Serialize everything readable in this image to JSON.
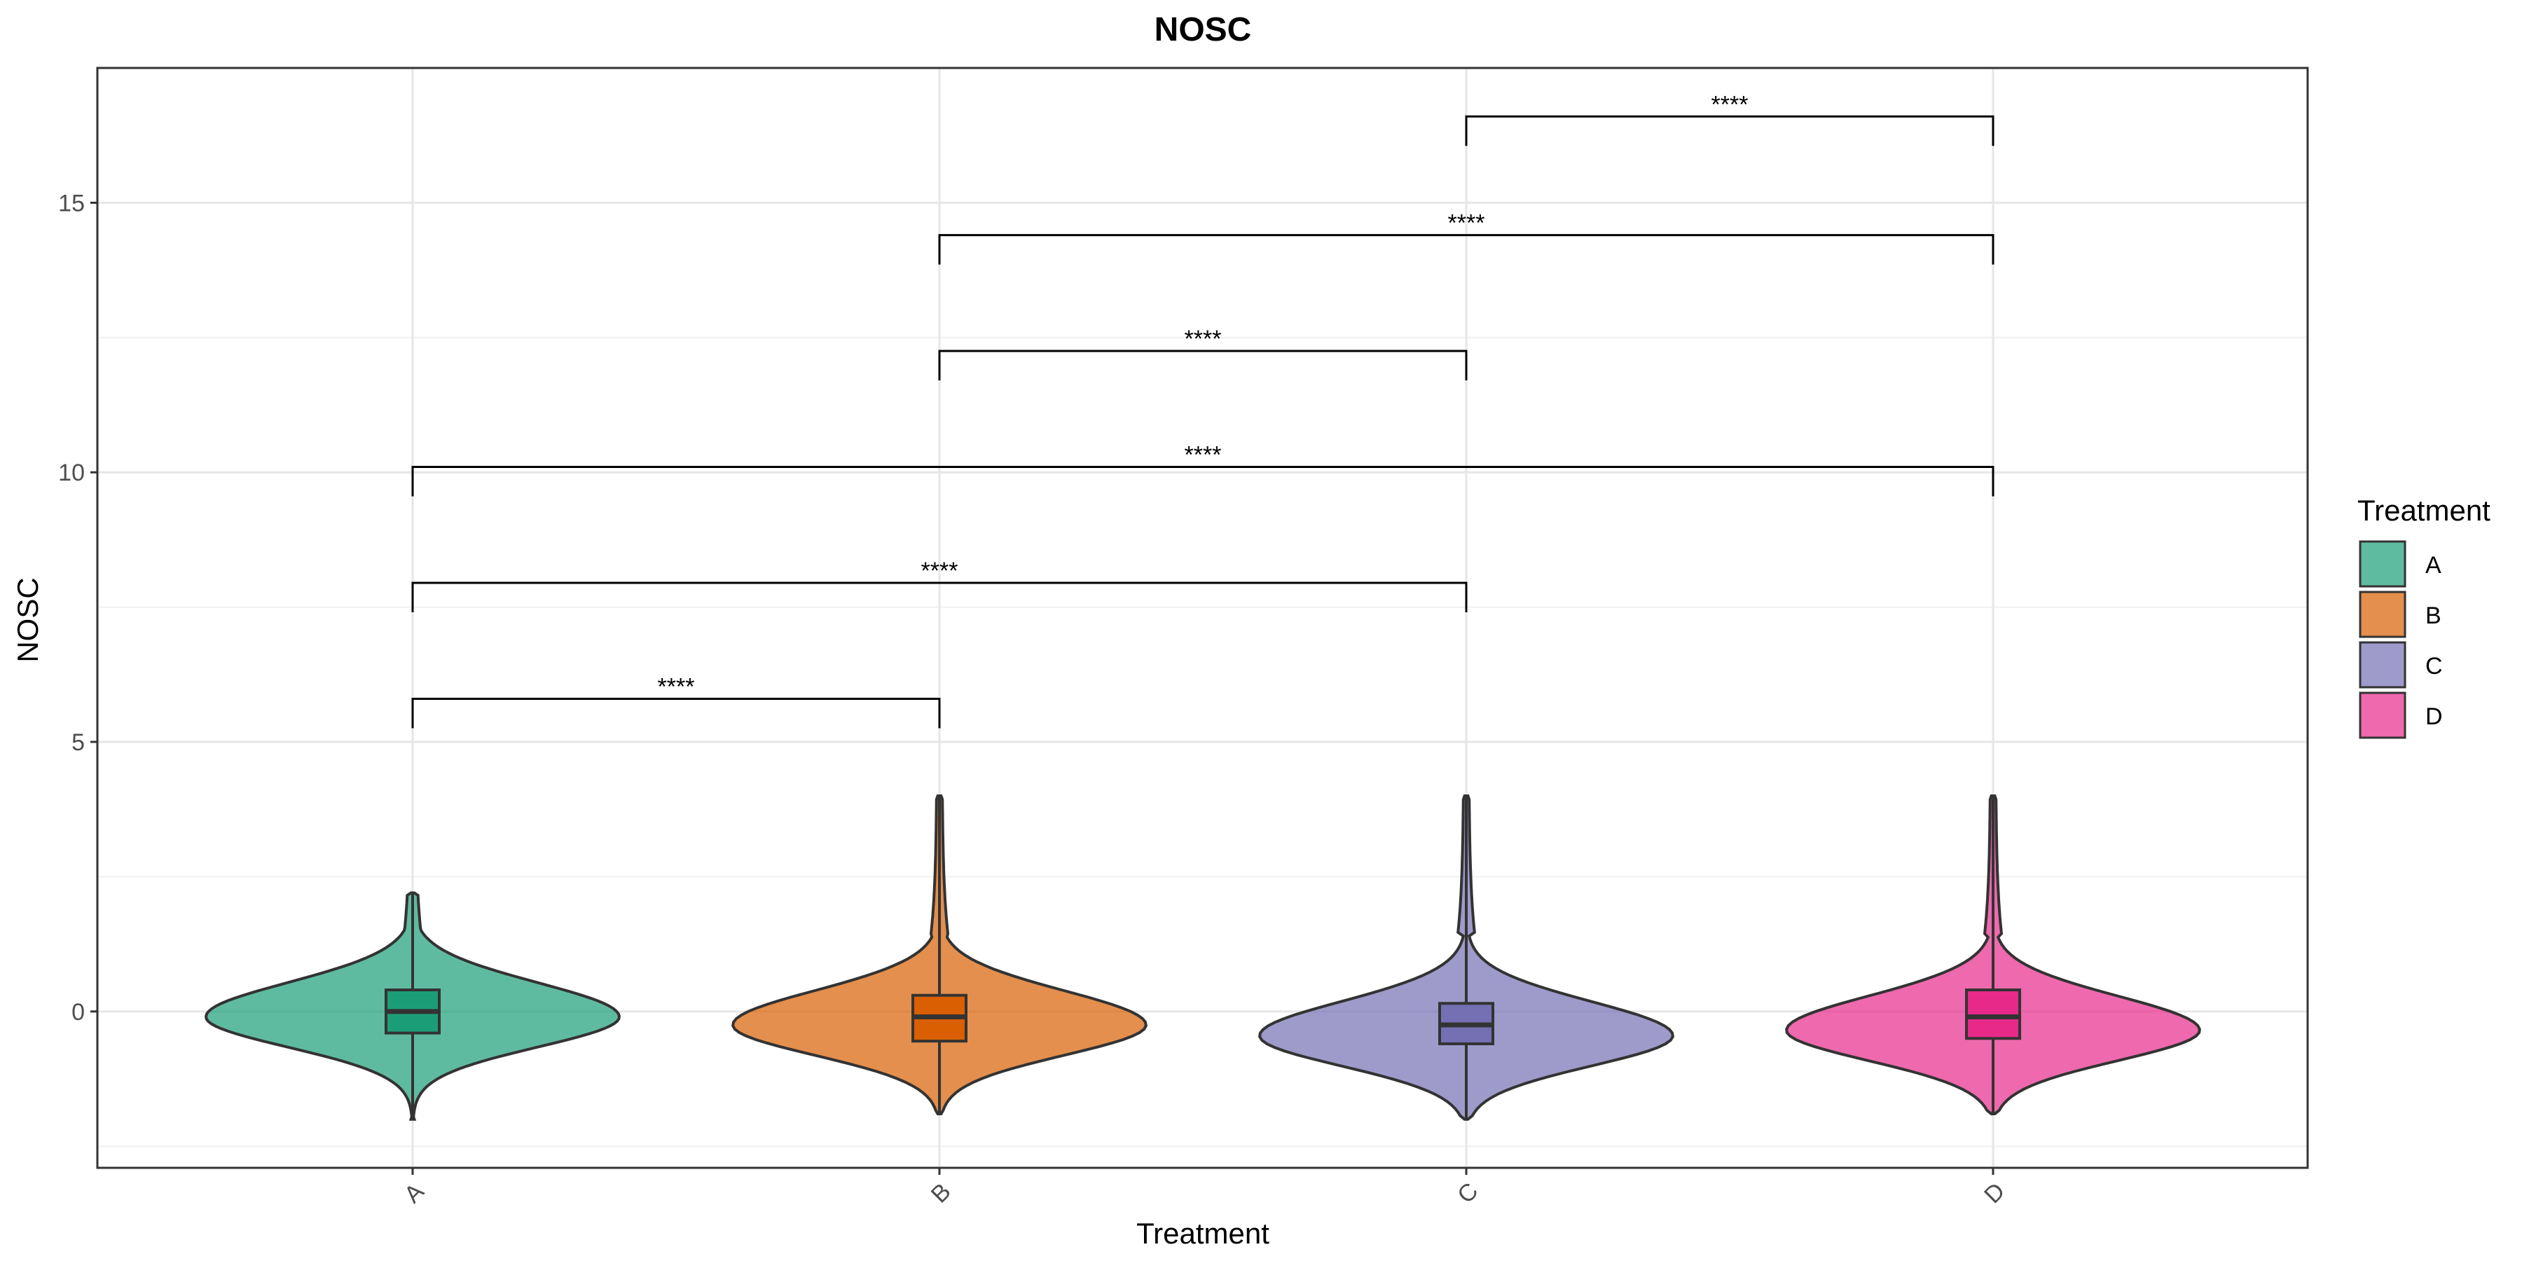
{
  "chart_data": {
    "type": "violin",
    "title": "NOSC",
    "xlabel": "Treatment",
    "ylabel": "NOSC",
    "ylim": [
      -2.9,
      17.5
    ],
    "yticks": [
      0,
      5,
      10,
      15
    ],
    "grid": true,
    "legend": {
      "title": "Treatment",
      "position": "right"
    },
    "categories": [
      "A",
      "B",
      "C",
      "D"
    ],
    "series": [
      {
        "name": "A",
        "color": "#1B9E77",
        "min": -2.0,
        "q1": -0.4,
        "median": 0.0,
        "q3": 0.4,
        "max": 2.2,
        "violin_max": 2.2,
        "violin_min": -2.0
      },
      {
        "name": "B",
        "color": "#D95F02",
        "min": -1.9,
        "q1": -0.55,
        "median": -0.1,
        "q3": 0.3,
        "max": 4.0,
        "violin_max": 4.0,
        "violin_min": -1.9
      },
      {
        "name": "C",
        "color": "#7570B3",
        "min": -2.0,
        "q1": -0.6,
        "median": -0.25,
        "q3": 0.15,
        "max": 4.0,
        "violin_max": 4.0,
        "violin_min": -2.0
      },
      {
        "name": "D",
        "color": "#E7298A",
        "min": -1.9,
        "q1": -0.5,
        "median": -0.1,
        "q3": 0.4,
        "max": 4.0,
        "violin_max": 4.0,
        "violin_min": -1.9
      }
    ],
    "comparisons": [
      {
        "group1": "A",
        "group2": "B",
        "y": 5.8,
        "label": "****"
      },
      {
        "group1": "A",
        "group2": "C",
        "y": 7.95,
        "label": "****"
      },
      {
        "group1": "A",
        "group2": "D",
        "y": 10.1,
        "label": "****"
      },
      {
        "group1": "B",
        "group2": "C",
        "y": 12.25,
        "label": "****"
      },
      {
        "group1": "B",
        "group2": "D",
        "y": 14.4,
        "label": "****"
      },
      {
        "group1": "C",
        "group2": "D",
        "y": 16.6,
        "label": "****"
      }
    ]
  }
}
